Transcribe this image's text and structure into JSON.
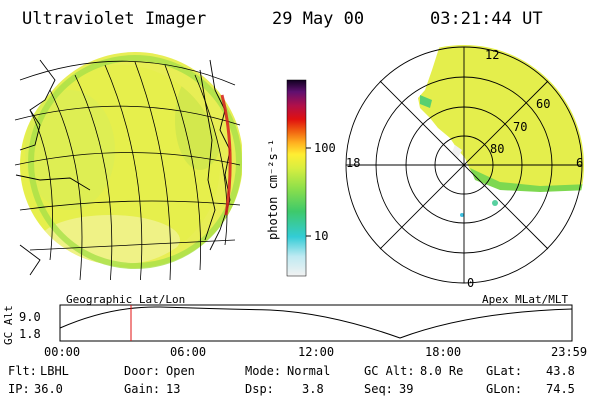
{
  "header": {
    "instrument": "Ultraviolet Imager",
    "date": "29 May 00",
    "time": "03:21:44 UT"
  },
  "colorbar": {
    "unit_label": "photon cm⁻²s⁻¹",
    "ticks": [
      "100",
      "10"
    ]
  },
  "polar": {
    "mlat_labels": [
      "60",
      "70",
      "80"
    ],
    "mlt_labels": [
      "12",
      "18",
      "6",
      "0"
    ],
    "caption": "Apex MLat/MLT"
  },
  "geo": {
    "caption": "Geographic Lat/Lon"
  },
  "timeline": {
    "axis_title": "GC Alt",
    "y_ticks": [
      "9.0",
      "1.8"
    ],
    "x_ticks": [
      "00:00",
      "06:00",
      "12:00",
      "18:00",
      "23:59"
    ]
  },
  "info": {
    "row1": [
      {
        "label": "Flt:",
        "value": "LBHL"
      },
      {
        "label": "Door:",
        "value": "Open"
      },
      {
        "label": "Mode:",
        "value": "Normal"
      },
      {
        "label": "GC Alt:",
        "value": "8.0 Re"
      },
      {
        "label": "GLat:",
        "value": "43.8"
      }
    ],
    "row2": [
      {
        "label": "IP:",
        "value": "36.0"
      },
      {
        "label": "Gain:",
        "value": "13"
      },
      {
        "label": "Dsp:",
        "value": "3.8"
      },
      {
        "label": "Seq:",
        "value": "39"
      },
      {
        "label": "GLon:",
        "value": "74.5"
      }
    ]
  },
  "colors": {
    "background": "#ffffff",
    "image_yellow": "#e8f04a",
    "image_green": "#8fe04a",
    "marker_red": "#e01010"
  }
}
